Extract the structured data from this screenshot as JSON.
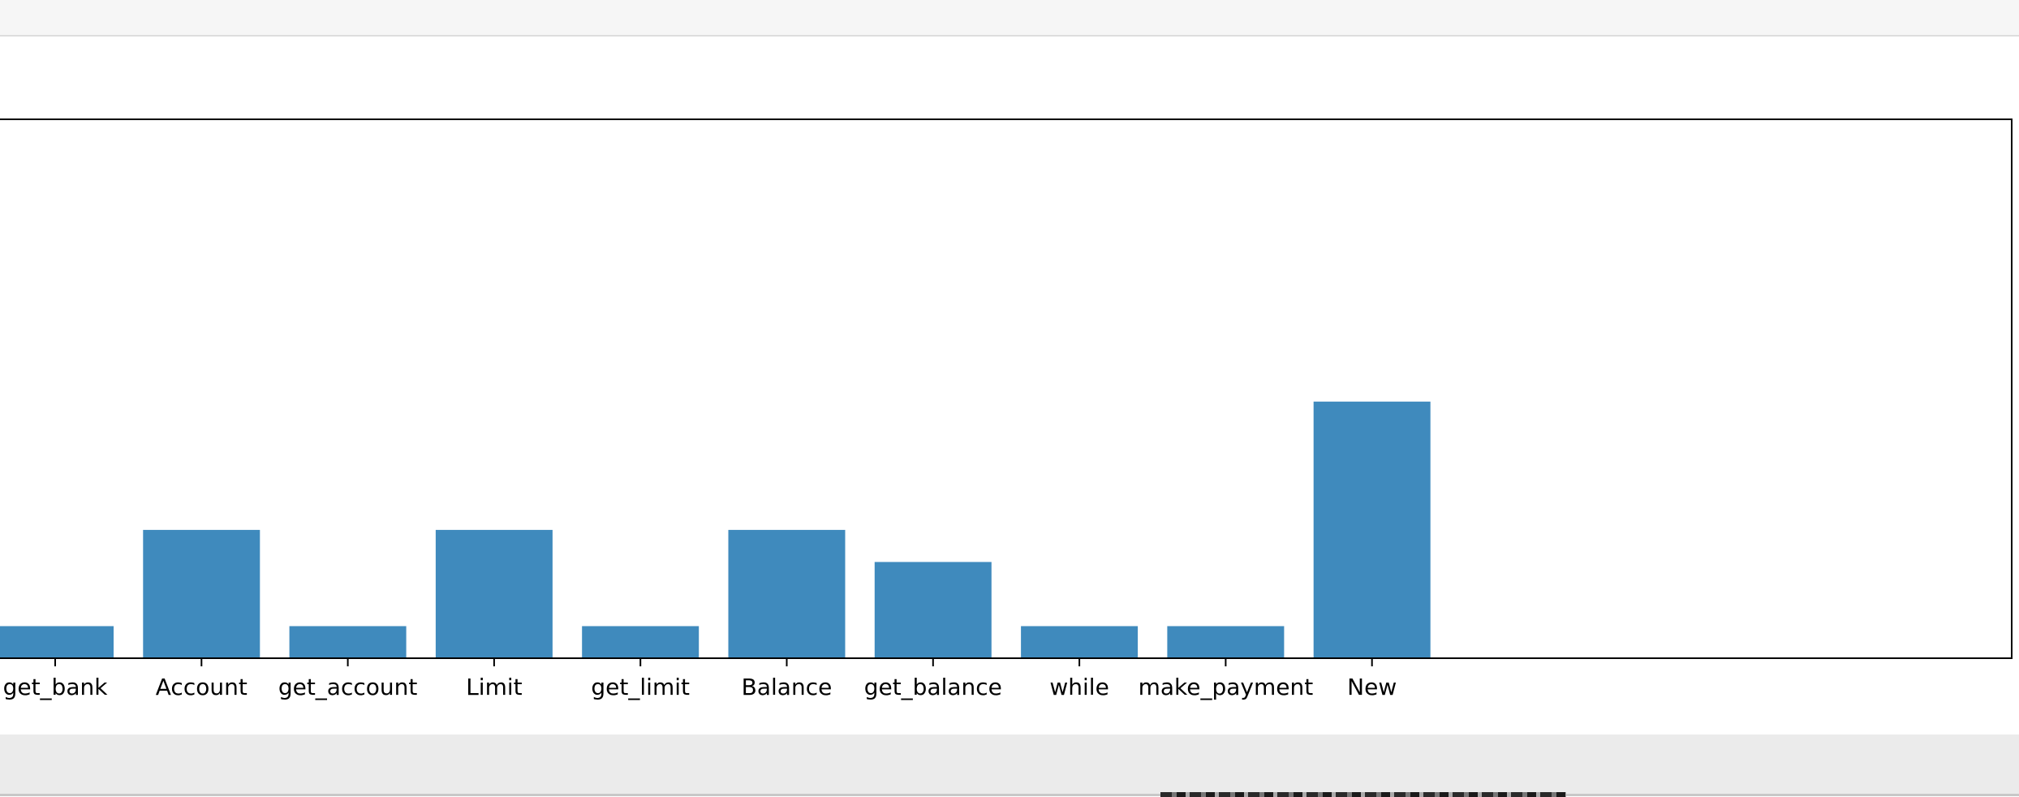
{
  "chart_data": {
    "type": "bar",
    "categories": [
      "get_bank",
      "Account",
      "get_account",
      "Limit",
      "get_limit",
      "Balance",
      "get_balance",
      "while",
      "make_payment",
      "New"
    ],
    "values": [
      1,
      4,
      1,
      4,
      1,
      4,
      3,
      1,
      1,
      8
    ],
    "ylim": [
      0,
      16.8
    ],
    "bar_color": "#3f8abd",
    "grid": false,
    "legend": "none"
  }
}
